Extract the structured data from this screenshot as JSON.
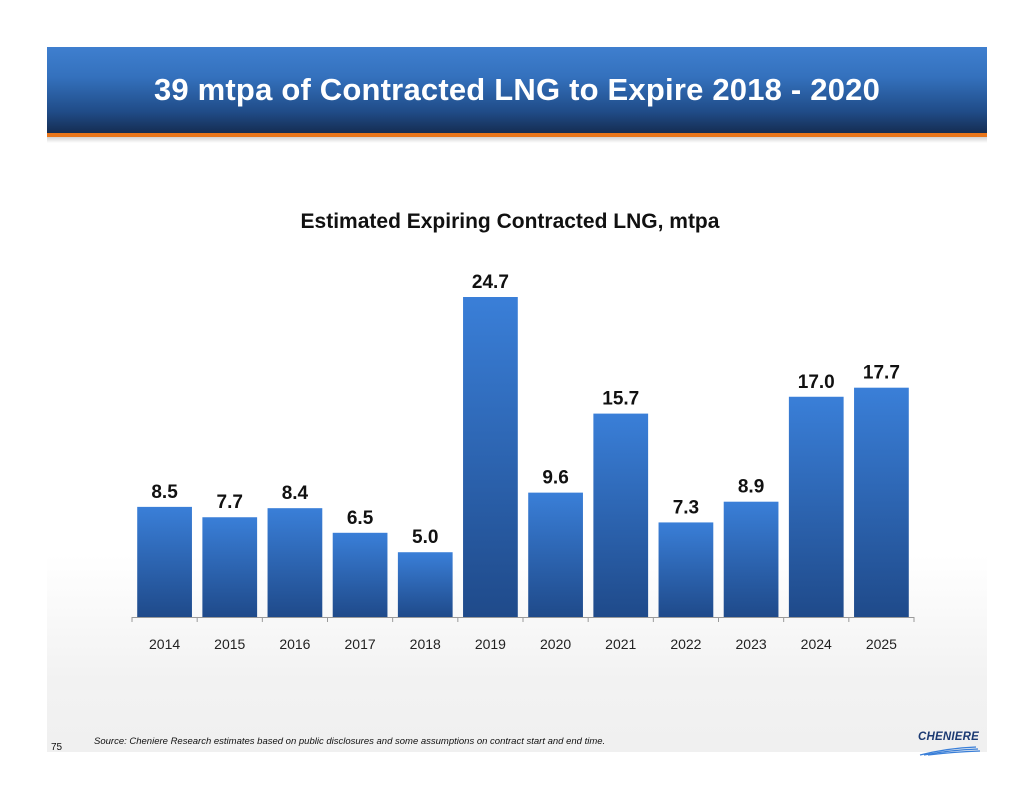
{
  "slide": {
    "title": "39 mtpa of Contracted LNG to Expire 2018 - 2020",
    "page_number": "75",
    "source_note": "Source: Cheniere Research estimates based on public disclosures and some assumptions on contract start and end  time.",
    "logo_text": "CHENIERE",
    "colors": {
      "banner_top": "#3f7fcf",
      "banner_bottom": "#152d52",
      "accent_rule": "#e8751a",
      "bar_top": "#3a7fd8",
      "bar_bottom": "#1f4a8a"
    }
  },
  "chart_data": {
    "type": "bar",
    "title": "Estimated Expiring Contracted LNG, mtpa",
    "xlabel": "",
    "ylabel": "",
    "categories": [
      "2014",
      "2015",
      "2016",
      "2017",
      "2018",
      "2019",
      "2020",
      "2021",
      "2022",
      "2023",
      "2024",
      "2025"
    ],
    "values": [
      8.5,
      7.7,
      8.4,
      6.5,
      5.0,
      24.7,
      9.6,
      15.7,
      7.3,
      8.9,
      17.0,
      17.7
    ],
    "value_labels": [
      "8.5",
      "7.7",
      "8.4",
      "6.5",
      "5.0",
      "24.7",
      "9.6",
      "15.7",
      "7.3",
      "8.9",
      "17.0",
      "17.7"
    ],
    "ylim": [
      0,
      24.7
    ],
    "grid": false,
    "legend": "none"
  }
}
